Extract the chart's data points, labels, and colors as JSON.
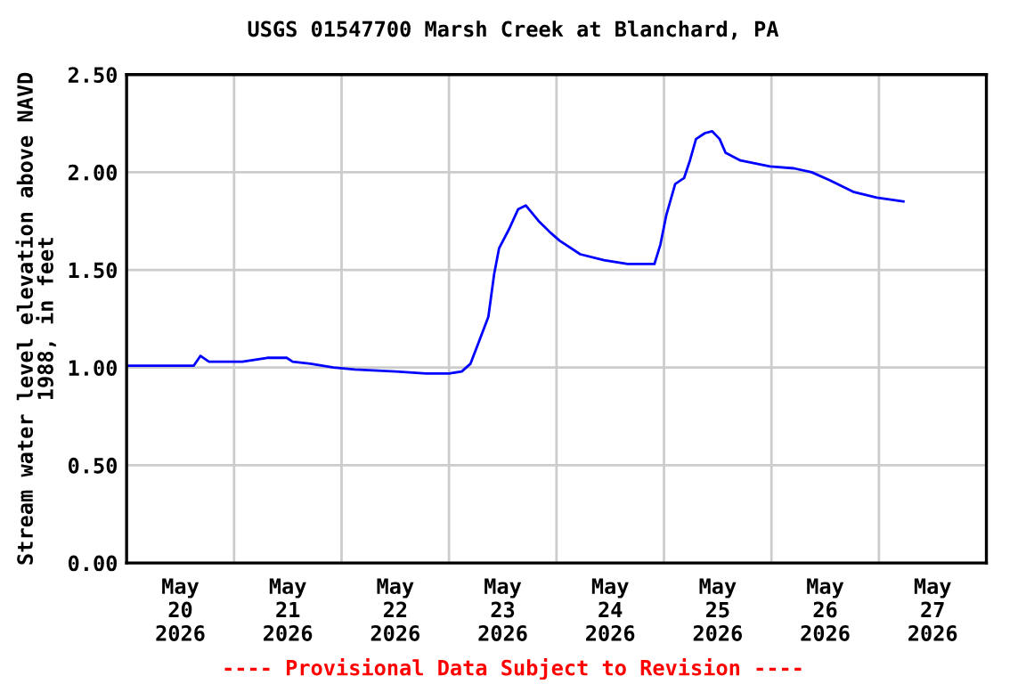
{
  "chart_data": {
    "type": "line",
    "title": "USGS 01547700 Marsh Creek at Blanchard, PA",
    "ylabel": "Stream water level elevation above NAVD\n1988, in feet",
    "annotations": [
      "---- Provisional Data Subject to Revision ----"
    ],
    "x": [
      "2026-05-20T00:00",
      "2026-05-20T15:00",
      "2026-05-20T16:30",
      "2026-05-20T18:24",
      "2026-05-21T01:50",
      "2026-05-21T07:24",
      "2026-05-21T11:45",
      "2026-05-21T13:05",
      "2026-05-21T17:03",
      "2026-05-21T22:12",
      "2026-05-22T03:00",
      "2026-05-22T12:07",
      "2026-05-22T18:53",
      "2026-05-23T00:03",
      "2026-05-23T02:50",
      "2026-05-23T04:48",
      "2026-05-23T06:48",
      "2026-05-23T08:47",
      "2026-05-23T10:05",
      "2026-05-23T11:10",
      "2026-05-23T13:26",
      "2026-05-23T15:25",
      "2026-05-23T17:08",
      "2026-05-23T20:01",
      "2026-05-23T22:41",
      "2026-05-24T00:40",
      "2026-05-24T05:19",
      "2026-05-24T10:36",
      "2026-05-24T15:53",
      "2026-05-24T21:52",
      "2026-05-24T23:12",
      "2026-05-25T00:31",
      "2026-05-25T02:30",
      "2026-05-25T04:29",
      "2026-05-25T05:48",
      "2026-05-25T07:09",
      "2026-05-25T09:08",
      "2026-05-25T10:44",
      "2026-05-25T12:26",
      "2026-05-25T13:45",
      "2026-05-25T17:05",
      "2026-05-25T23:41",
      "2026-05-26T05:01",
      "2026-05-26T08:59",
      "2026-05-26T12:58",
      "2026-05-26T18:14",
      "2026-05-26T23:31",
      "2026-05-27T05:28"
    ],
    "series": [
      {
        "color": "#0000ff",
        "values": [
          1.01,
          1.01,
          1.06,
          1.03,
          1.03,
          1.05,
          1.05,
          1.03,
          1.02,
          1.0,
          0.99,
          0.98,
          0.97,
          0.97,
          0.98,
          1.02,
          1.14,
          1.26,
          1.48,
          1.61,
          1.71,
          1.81,
          1.83,
          1.75,
          1.69,
          1.65,
          1.58,
          1.55,
          1.53,
          1.53,
          1.63,
          1.78,
          1.94,
          1.97,
          2.06,
          2.17,
          2.2,
          2.21,
          2.17,
          2.1,
          2.06,
          2.03,
          2.02,
          2.0,
          1.96,
          1.9,
          1.87,
          1.85
        ]
      }
    ],
    "xlim": [
      "2026-05-20T00:00",
      "2026-05-28T00:00"
    ],
    "xticks": [
      {
        "value": "2026-05-20T12:00",
        "label": "May\n20\n2026"
      },
      {
        "value": "2026-05-21T00:00",
        "label": null
      },
      {
        "value": "2026-05-21T12:00",
        "label": "May\n21\n2026"
      },
      {
        "value": "2026-05-22T00:00",
        "label": null
      },
      {
        "value": "2026-05-22T12:00",
        "label": "May\n22\n2026"
      },
      {
        "value": "2026-05-23T00:00",
        "label": null
      },
      {
        "value": "2026-05-23T12:00",
        "label": "May\n23\n2026"
      },
      {
        "value": "2026-05-24T00:00",
        "label": null
      },
      {
        "value": "2026-05-24T12:00",
        "label": "May\n24\n2026"
      },
      {
        "value": "2026-05-25T00:00",
        "label": null
      },
      {
        "value": "2026-05-25T12:00",
        "label": "May\n25\n2026"
      },
      {
        "value": "2026-05-26T00:00",
        "label": null
      },
      {
        "value": "2026-05-26T12:00",
        "label": "May\n26\n2026"
      },
      {
        "value": "2026-05-27T00:00",
        "label": null
      },
      {
        "value": "2026-05-27T12:00",
        "label": "May\n27\n2026"
      }
    ],
    "ylim": [
      0,
      2.5
    ],
    "yticks": [
      {
        "value": 0,
        "label": "0.00"
      },
      {
        "value": 0.5,
        "label": "0.50"
      },
      {
        "value": 1,
        "label": "1.00"
      },
      {
        "value": 1.5,
        "label": "1.50"
      },
      {
        "value": 2,
        "label": "2.00"
      },
      {
        "value": 2.5,
        "label": "2.50"
      }
    ],
    "grid": true,
    "legend": false,
    "marker": "none",
    "line_style": "solid"
  }
}
